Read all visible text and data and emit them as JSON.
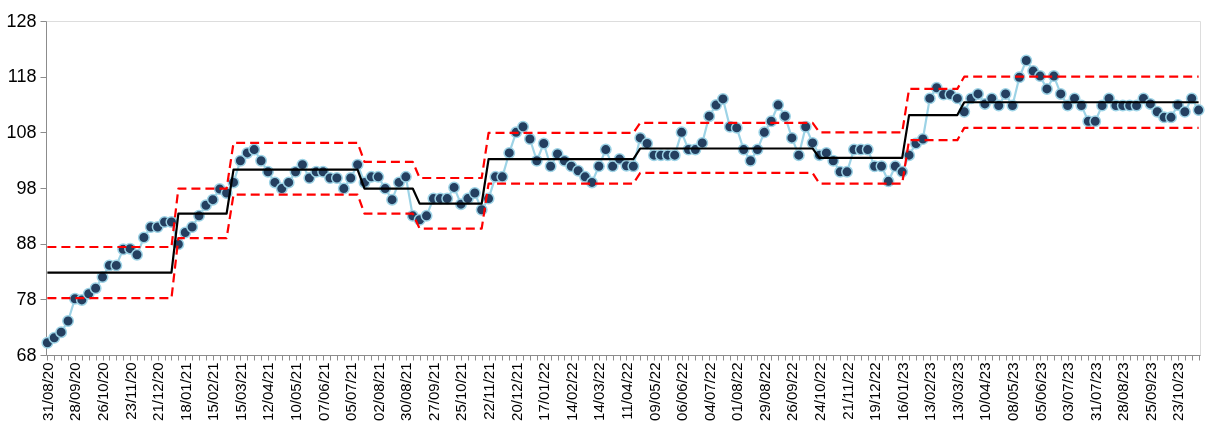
{
  "chart_data": {
    "type": "line",
    "categories": [
      "31/08/20",
      null,
      null,
      null,
      "28/09/20",
      null,
      null,
      null,
      "26/10/20",
      null,
      null,
      null,
      "23/11/20",
      null,
      null,
      null,
      "21/12/20",
      null,
      null,
      null,
      "18/01/21",
      null,
      null,
      null,
      "15/02/21",
      null,
      null,
      null,
      "15/03/21",
      null,
      null,
      null,
      "12/04/21",
      null,
      null,
      null,
      "10/05/21",
      null,
      null,
      null,
      "07/06/21",
      null,
      null,
      null,
      "05/07/21",
      null,
      null,
      null,
      "02/08/21",
      null,
      null,
      null,
      "30/08/21",
      null,
      null,
      null,
      "27/09/21",
      null,
      null,
      null,
      "25/10/21",
      null,
      null,
      null,
      "22/11/21",
      null,
      null,
      null,
      "20/12/21",
      null,
      null,
      null,
      "17/01/22",
      null,
      null,
      null,
      "14/02/22",
      null,
      null,
      null,
      "14/03/22",
      null,
      null,
      null,
      "11/04/22",
      null,
      null,
      null,
      "09/05/22",
      null,
      null,
      null,
      "06/06/22",
      null,
      null,
      null,
      "04/07/22",
      null,
      null,
      null,
      "01/08/22",
      null,
      null,
      null,
      "29/08/22",
      null,
      null,
      null,
      "26/09/22",
      null,
      null,
      null,
      "24/10/22",
      null,
      null,
      null,
      "21/11/22",
      null,
      null,
      null,
      "19/12/22",
      null,
      null,
      null,
      "16/01/23",
      null,
      null,
      null,
      "13/02/23",
      null,
      null,
      null,
      "13/03/23",
      null,
      null,
      null,
      "10/04/23",
      null,
      null,
      null,
      "08/05/23",
      null,
      null,
      null,
      "05/06/23",
      null,
      null,
      null,
      "03/07/23",
      null,
      null,
      null,
      "31/07/23",
      null,
      null,
      null,
      "28/08/23",
      null,
      null,
      null,
      "25/09/23",
      null,
      null,
      null,
      "23/10/23",
      null,
      null,
      null
    ],
    "series": [
      {
        "color": "#243f60",
        "marker": "circle",
        "line_style": "solid",
        "values": [
          70.2,
          71.1,
          72.1,
          74.1,
          78.1,
          77.9,
          79.0,
          80.0,
          82.0,
          84.1,
          84.1,
          87.0,
          87.1,
          86.0,
          89.1,
          91.0,
          91.0,
          91.9,
          91.9,
          87.9,
          90.0,
          91.0,
          93.0,
          94.9,
          95.9,
          97.8,
          97.1,
          99.0,
          102.9,
          104.3,
          104.9,
          102.9,
          100.9,
          99.0,
          97.9,
          99.0,
          100.9,
          102.2,
          99.8,
          100.9,
          100.9,
          99.8,
          99.8,
          97.9,
          99.8,
          102.2,
          99.0,
          100.0,
          100.0,
          97.9,
          95.9,
          99.0,
          100.0,
          93.0,
          92.3,
          93.0,
          96.1,
          96.1,
          96.1,
          98.1,
          95.1,
          96.1,
          97.1,
          94.1,
          96.1,
          100.0,
          100.0,
          104.3,
          108.0,
          109.0,
          106.8,
          102.9,
          106.0,
          101.9,
          104.1,
          102.9,
          101.9,
          101.1,
          100.0,
          99.0,
          101.9,
          104.9,
          101.9,
          103.2,
          102.0,
          101.9,
          107.0,
          106.0,
          103.9,
          103.9,
          103.9,
          103.9,
          108.0,
          104.9,
          104.9,
          106.1,
          110.9,
          112.9,
          114.0,
          109.0,
          108.8,
          104.9,
          102.9,
          104.9,
          108.0,
          110.0,
          112.9,
          110.9,
          107.0,
          103.9,
          109.0,
          106.1,
          103.9,
          104.3,
          102.9,
          100.9,
          100.9,
          104.9,
          104.9,
          104.9,
          101.9,
          101.9,
          99.2,
          101.9,
          100.9,
          103.9,
          106.0,
          106.8,
          114.1,
          116.0,
          114.8,
          114.8,
          114.1,
          111.7,
          114.1,
          114.9,
          113.1,
          114.1,
          112.8,
          114.9,
          112.8,
          117.9,
          120.9,
          119.0,
          118.1,
          115.8,
          118.1,
          114.9,
          112.8,
          114.1,
          112.8,
          110.0,
          110.0,
          112.8,
          114.1,
          112.8,
          112.8,
          112.8,
          112.8,
          114.1,
          113.1,
          111.7,
          110.7,
          110.7,
          112.9,
          111.7,
          114.1,
          112.0
        ]
      },
      {
        "color": "#000000",
        "marker": "none",
        "line_style": "solid",
        "values": [
          82.8,
          82.8,
          82.8,
          82.8,
          82.8,
          82.8,
          82.8,
          82.8,
          82.8,
          82.8,
          82.8,
          82.8,
          82.8,
          82.8,
          82.8,
          82.8,
          82.8,
          82.8,
          82.8,
          93.4,
          93.4,
          93.4,
          93.4,
          93.4,
          93.4,
          93.4,
          93.4,
          101.3,
          101.3,
          101.3,
          101.3,
          101.3,
          101.3,
          101.3,
          101.3,
          101.3,
          101.3,
          101.3,
          101.3,
          101.3,
          101.3,
          101.3,
          101.3,
          101.3,
          101.3,
          101.3,
          97.9,
          97.9,
          97.9,
          97.9,
          97.9,
          97.9,
          97.9,
          97.9,
          95.2,
          95.2,
          95.2,
          95.2,
          95.2,
          95.2,
          95.2,
          95.2,
          95.2,
          95.2,
          103.2,
          103.2,
          103.2,
          103.2,
          103.2,
          103.2,
          103.2,
          103.2,
          103.2,
          103.2,
          103.2,
          103.2,
          103.2,
          103.2,
          103.2,
          103.2,
          103.2,
          103.2,
          103.2,
          103.2,
          103.2,
          103.2,
          105.1,
          105.1,
          105.1,
          105.1,
          105.1,
          105.1,
          105.1,
          105.1,
          105.1,
          105.1,
          105.1,
          105.1,
          105.1,
          105.1,
          105.1,
          105.1,
          105.1,
          105.1,
          105.1,
          105.1,
          105.1,
          105.1,
          105.1,
          105.1,
          105.1,
          105.1,
          103.4,
          103.4,
          103.4,
          103.4,
          103.4,
          103.4,
          103.4,
          103.4,
          103.4,
          103.4,
          103.4,
          103.4,
          103.4,
          111.1,
          111.1,
          111.1,
          111.1,
          111.1,
          111.1,
          111.1,
          111.1,
          113.4,
          113.4,
          113.4,
          113.4,
          113.4,
          113.4,
          113.4,
          113.4,
          113.4,
          113.4,
          113.4,
          113.4,
          113.4,
          113.4,
          113.4,
          113.4,
          113.4,
          113.4,
          113.4,
          113.4,
          113.4,
          113.4,
          113.4,
          113.4,
          113.4,
          113.4,
          113.4,
          113.4,
          113.4,
          113.4,
          113.4,
          113.4,
          113.4,
          113.4,
          113.4
        ]
      },
      {
        "color": "#ff0000",
        "marker": "none",
        "line_style": "dashed",
        "values": [
          87.4,
          87.4,
          87.4,
          87.4,
          87.4,
          87.4,
          87.4,
          87.4,
          87.4,
          87.4,
          87.4,
          87.4,
          87.4,
          87.4,
          87.4,
          87.4,
          87.4,
          87.4,
          87.4,
          97.9,
          97.9,
          97.9,
          97.9,
          97.9,
          97.9,
          97.9,
          97.9,
          106.1,
          106.1,
          106.1,
          106.1,
          106.1,
          106.1,
          106.1,
          106.1,
          106.1,
          106.1,
          106.1,
          106.1,
          106.1,
          106.1,
          106.1,
          106.1,
          106.1,
          106.1,
          106.1,
          102.7,
          102.7,
          102.7,
          102.7,
          102.7,
          102.7,
          102.7,
          102.7,
          99.8,
          99.8,
          99.8,
          99.8,
          99.8,
          99.8,
          99.8,
          99.8,
          99.8,
          99.8,
          107.9,
          107.9,
          107.9,
          107.9,
          107.9,
          107.9,
          107.9,
          107.9,
          107.9,
          107.9,
          107.9,
          107.9,
          107.9,
          107.9,
          107.9,
          107.9,
          107.9,
          107.9,
          107.9,
          107.9,
          107.9,
          107.9,
          109.7,
          109.7,
          109.7,
          109.7,
          109.7,
          109.7,
          109.7,
          109.7,
          109.7,
          109.7,
          109.7,
          109.7,
          109.7,
          109.7,
          109.7,
          109.7,
          109.7,
          109.7,
          109.7,
          109.7,
          109.7,
          109.7,
          109.7,
          109.7,
          109.7,
          109.7,
          108.0,
          108.0,
          108.0,
          108.0,
          108.0,
          108.0,
          108.0,
          108.0,
          108.0,
          108.0,
          108.0,
          108.0,
          108.0,
          115.8,
          115.8,
          115.8,
          115.8,
          115.8,
          115.8,
          115.8,
          115.8,
          118.0,
          118.0,
          118.0,
          118.0,
          118.0,
          118.0,
          118.0,
          118.0,
          118.0,
          118.0,
          118.0,
          118.0,
          118.0,
          118.0,
          118.0,
          118.0,
          118.0,
          118.0,
          118.0,
          118.0,
          118.0,
          118.0,
          118.0,
          118.0,
          118.0,
          118.0,
          118.0,
          118.0,
          118.0,
          118.0,
          118.0,
          118.0,
          118.0,
          118.0,
          118.0
        ]
      },
      {
        "color": "#ff0000",
        "marker": "none",
        "line_style": "dashed",
        "values": [
          78.2,
          78.2,
          78.2,
          78.2,
          78.2,
          78.2,
          78.2,
          78.2,
          78.2,
          78.2,
          78.2,
          78.2,
          78.2,
          78.2,
          78.2,
          78.2,
          78.2,
          78.2,
          78.2,
          89.0,
          89.0,
          89.0,
          89.0,
          89.0,
          89.0,
          89.0,
          89.0,
          96.8,
          96.8,
          96.8,
          96.8,
          96.8,
          96.8,
          96.8,
          96.8,
          96.8,
          96.8,
          96.8,
          96.8,
          96.8,
          96.8,
          96.8,
          96.8,
          96.8,
          96.8,
          96.8,
          93.4,
          93.4,
          93.4,
          93.4,
          93.4,
          93.4,
          93.4,
          93.4,
          90.7,
          90.7,
          90.7,
          90.7,
          90.7,
          90.7,
          90.7,
          90.7,
          90.7,
          90.7,
          98.8,
          98.8,
          98.8,
          98.8,
          98.8,
          98.8,
          98.8,
          98.8,
          98.8,
          98.8,
          98.8,
          98.8,
          98.8,
          98.8,
          98.8,
          98.8,
          98.8,
          98.8,
          98.8,
          98.8,
          98.8,
          98.8,
          100.7,
          100.7,
          100.7,
          100.7,
          100.7,
          100.7,
          100.7,
          100.7,
          100.7,
          100.7,
          100.7,
          100.7,
          100.7,
          100.7,
          100.7,
          100.7,
          100.7,
          100.7,
          100.7,
          100.7,
          100.7,
          100.7,
          100.7,
          100.7,
          100.7,
          100.7,
          98.8,
          98.8,
          98.8,
          98.8,
          98.8,
          98.8,
          98.8,
          98.8,
          98.8,
          98.8,
          98.8,
          98.8,
          98.8,
          106.6,
          106.6,
          106.6,
          106.6,
          106.6,
          106.6,
          106.6,
          106.6,
          108.8,
          108.8,
          108.8,
          108.8,
          108.8,
          108.8,
          108.8,
          108.8,
          108.8,
          108.8,
          108.8,
          108.8,
          108.8,
          108.8,
          108.8,
          108.8,
          108.8,
          108.8,
          108.8,
          108.8,
          108.8,
          108.8,
          108.8,
          108.8,
          108.8,
          108.8,
          108.8,
          108.8,
          108.8,
          108.8,
          108.8,
          108.8,
          108.8,
          108.8,
          108.8
        ]
      }
    ],
    "ylim": [
      68,
      128
    ],
    "yticks": [
      68,
      78,
      88,
      98,
      108,
      118,
      128
    ],
    "grid": false
  }
}
